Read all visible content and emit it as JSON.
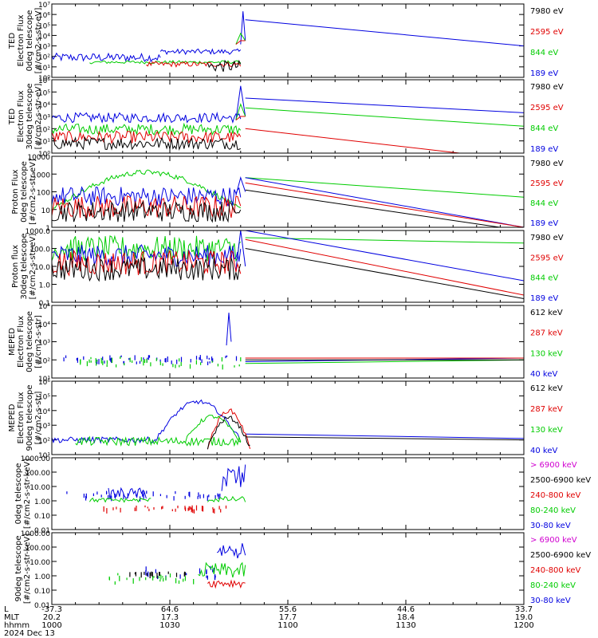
{
  "chart_data": {
    "type": "line",
    "date": "2024 Dec 13",
    "x_axis": {
      "row_labels": [
        "L",
        "MLT",
        "hhmm"
      ],
      "ticks": [
        {
          "hhmm": "1000",
          "L": "-37.3",
          "MLT": "20.2"
        },
        {
          "hhmm": "1030",
          "L": "64.6",
          "MLT": "17.3"
        },
        {
          "hhmm": "1100",
          "L": "55.6",
          "MLT": "17.7"
        },
        {
          "hhmm": "1130",
          "L": "44.6",
          "MLT": "18.4"
        },
        {
          "hhmm": "1200",
          "L": "33.7",
          "MLT": "19.0"
        }
      ]
    },
    "panels": [
      {
        "ylabel": [
          "TED",
          "Electron Flux",
          "0deg telescope",
          "[#/cm2-s-str-eV]"
        ],
        "log_min": 0,
        "log_max": 7,
        "ticks": [
          "10⁰",
          "10¹",
          "10²",
          "10³",
          "10⁴",
          "10⁵",
          "10⁶",
          "10⁷"
        ],
        "legend": [
          {
            "label": "7980 eV",
            "color": "#000000"
          },
          {
            "label": "2595 eV",
            "color": "#e00000"
          },
          {
            "label": "844 eV",
            "color": "#00cc00"
          },
          {
            "label": "189 eV",
            "color": "#0000e0"
          }
        ],
        "series": [
          {
            "color": "#0000e0",
            "noisy": [
              [
                0,
                0.23,
                1.5,
                2.3
              ],
              [
                0.23,
                0.4,
                2.2,
                2.7
              ]
            ],
            "spike": [
              0.4,
              0.41,
              6.3
            ],
            "tail": [
              5.5,
              3.0
            ]
          },
          {
            "color": "#00cc00",
            "noisy": [
              [
                0.08,
                0.4,
                1.3,
                1.6
              ]
            ],
            "spike": [
              0.39,
              0.41,
              4.2
            ]
          },
          {
            "color": "#e00000",
            "noisy": [
              [
                0.2,
                0.4,
                1.0,
                1.5
              ]
            ],
            "spike": [
              0.39,
              0.41,
              3.5
            ]
          },
          {
            "color": "#000000",
            "noisy": [
              [
                0.33,
                0.4,
                0.5,
                1.6
              ]
            ]
          }
        ]
      },
      {
        "ylabel": [
          "TED",
          "Electron Flux",
          "30deg telescope",
          "[#/cm2-s-str-eV]"
        ],
        "log_min": 0,
        "log_max": 6,
        "ticks": [
          "10⁰",
          "10¹",
          "10²",
          "10³",
          "10⁴",
          "10⁵",
          "10⁶"
        ],
        "legend": [
          {
            "label": "7980 eV",
            "color": "#000000"
          },
          {
            "label": "2595 eV",
            "color": "#e00000"
          },
          {
            "label": "844 eV",
            "color": "#00cc00"
          },
          {
            "label": "189 eV",
            "color": "#0000e0"
          }
        ],
        "series": [
          {
            "color": "#0000e0",
            "noisy": [
              [
                0,
                0.4,
                2.5,
                3.3
              ]
            ],
            "spike": [
              0.39,
              0.41,
              5.5
            ],
            "tail": [
              4.5,
              3.3
            ]
          },
          {
            "color": "#00cc00",
            "noisy": [
              [
                0,
                0.4,
                1.5,
                2.4
              ]
            ],
            "spike": [
              0.39,
              0.41,
              4.0
            ],
            "tail": [
              3.7,
              2.2
            ]
          },
          {
            "color": "#e00000",
            "noisy": [
              [
                0,
                0.4,
                0.8,
                1.8
              ]
            ],
            "spike": [
              0.39,
              0.41,
              3.0
            ],
            "tail": [
              2.0,
              -0.6
            ]
          },
          {
            "color": "#000000",
            "noisy": [
              [
                0,
                0.4,
                0.3,
                1.3
              ]
            ]
          }
        ]
      },
      {
        "ylabel": [
          "Proton Flux",
          "0deg telescope",
          "[#/cm2-s-str-eV]"
        ],
        "log_min": 0,
        "log_max": 4,
        "ticks": [
          "1",
          "10",
          "100",
          "1000",
          "10000"
        ],
        "legend": [
          {
            "label": "7980 eV",
            "color": "#000000"
          },
          {
            "label": "2595 eV",
            "color": "#e00000"
          },
          {
            "label": "844 eV",
            "color": "#00cc00"
          },
          {
            "label": "189 eV",
            "color": "#0000e0"
          }
        ],
        "series": [
          {
            "color": "#00cc00",
            "hump": [
              0,
              0.4,
              1.0,
              3.1
            ],
            "tail": [
              2.8,
              1.7
            ]
          },
          {
            "color": "#0000e0",
            "noisy": [
              [
                0,
                0.4,
                1.2,
                2.3
              ]
            ],
            "spike": [
              0.39,
              0.41,
              2.8
            ],
            "tail": [
              2.8,
              0.0
            ]
          },
          {
            "color": "#e00000",
            "noisy": [
              [
                0,
                0.4,
                0.5,
                1.8
              ]
            ],
            "tail": [
              2.5,
              0.0
            ]
          },
          {
            "color": "#000000",
            "noisy": [
              [
                0,
                0.4,
                0.3,
                1.5
              ]
            ],
            "tail": [
              2.1,
              -0.2
            ]
          }
        ]
      },
      {
        "ylabel": [
          "Proton flux",
          "30deg telescope",
          "[#/cm2-s-str-eV]"
        ],
        "log_min": -1,
        "log_max": 3,
        "ticks": [
          "0.1",
          "1.0",
          "10.0",
          "100.0",
          "1000.0"
        ],
        "legend": [
          {
            "label": "7980 eV",
            "color": "#000000"
          },
          {
            "label": "2595 eV",
            "color": "#e00000"
          },
          {
            "label": "844 eV",
            "color": "#00cc00"
          },
          {
            "label": "189 eV",
            "color": "#0000e0"
          }
        ],
        "series": [
          {
            "color": "#00cc00",
            "noisy": [
              [
                0,
                0.4,
                1.3,
                2.7
              ]
            ],
            "tail": [
              2.6,
              2.3
            ]
          },
          {
            "color": "#0000e0",
            "noisy": [
              [
                0,
                0.4,
                1.0,
                2.2
              ]
            ],
            "spike": [
              0.39,
              0.41,
              3.0
            ],
            "tail": [
              3.0,
              0.2
            ]
          },
          {
            "color": "#e00000",
            "noisy": [
              [
                0,
                0.4,
                0.5,
                1.9
              ]
            ],
            "tail": [
              2.5,
              -0.6
            ]
          },
          {
            "color": "#000000",
            "noisy": [
              [
                0,
                0.4,
                0.2,
                1.5
              ]
            ],
            "tail": [
              2.0,
              -0.8
            ]
          }
        ]
      },
      {
        "ylabel": [
          "MEPED",
          "Electron Flux",
          "0deg telescope",
          "[#/cm2-s-str]"
        ],
        "log_min": 1,
        "log_max": 5,
        "ticks": [
          "10¹",
          "10²",
          "10³",
          "10⁴",
          "10⁵"
        ],
        "legend": [
          {
            "label": "612 keV",
            "color": "#000000"
          },
          {
            "label": "287 keV",
            "color": "#e00000"
          },
          {
            "label": "130 keV",
            "color": "#00cc00"
          },
          {
            "label": "40 keV",
            "color": "#0000e0"
          }
        ],
        "series": [
          {
            "color": "#0000e0",
            "dots": [
              0.02,
              0.4,
              1.9,
              2.3
            ],
            "spike": [
              0.37,
              0.38,
              4.6
            ],
            "tail": [
              1.9,
              2.1
            ]
          },
          {
            "color": "#00cc00",
            "dots": [
              0.05,
              0.4,
              1.7,
              2.2
            ],
            "tail": [
              1.8,
              2.0
            ]
          },
          {
            "color": "#e00000",
            "tail": [
              2.1,
              2.1
            ]
          },
          {
            "color": "#000000",
            "tail": [
              2.0,
              2.0
            ]
          }
        ]
      },
      {
        "ylabel": [
          "MEPED",
          "Electron Flux",
          "90deg telescope",
          "[#/cm2-s-str]"
        ],
        "log_min": 1,
        "log_max": 6,
        "ticks": [
          "10¹",
          "10²",
          "10³",
          "10⁴",
          "10⁵",
          "10⁶"
        ],
        "legend": [
          {
            "label": "612 keV",
            "color": "#000000"
          },
          {
            "label": "287 keV",
            "color": "#e00000"
          },
          {
            "label": "130 keV",
            "color": "#00cc00"
          },
          {
            "label": "40 keV",
            "color": "#0000e0"
          }
        ],
        "series": [
          {
            "color": "#0000e0",
            "hump": [
              0.22,
              0.4,
              2.0,
              4.6
            ],
            "noisy": [
              [
                0,
                0.22,
                1.8,
                2.2
              ]
            ],
            "tail": [
              2.4,
              2.1
            ]
          },
          {
            "color": "#e00000",
            "hump": [
              0.33,
              0.42,
              1.5,
              4.0
            ]
          },
          {
            "color": "#00cc00",
            "noisy": [
              [
                0.05,
                0.4,
                1.6,
                2.2
              ]
            ],
            "hump": [
              0.28,
              0.4,
              1.8,
              3.6
            ]
          },
          {
            "color": "#000000",
            "hump": [
              0.33,
              0.42,
              1.5,
              3.5
            ],
            "tail": [
              2.2,
              2.0
            ]
          }
        ]
      },
      {
        "ylabel": [
          "0deg telescope",
          "[#/cm2-s-str-keV]"
        ],
        "log_min": -2,
        "log_max": 3,
        "ticks": [
          "0.01",
          "0.10",
          "1.00",
          "10.00",
          "100.00",
          "1000.00"
        ],
        "legend": [
          {
            "label": "> 6900 keV",
            "color": "#d000d0"
          },
          {
            "label": "2500-6900 keV",
            "color": "#000000"
          },
          {
            "label": "240-800 keV",
            "color": "#e00000"
          },
          {
            "label": "80-240 keV",
            "color": "#00cc00"
          },
          {
            "label": "30-80 keV",
            "color": "#0000e0"
          }
        ],
        "series": [
          {
            "color": "#0000e0",
            "noisy": [
              [
                0.12,
                0.2,
                0.1,
                0.9
              ],
              [
                0.36,
                0.41,
                0.5,
                2.6
              ]
            ],
            "dots": [
              0.03,
              0.36,
              0.3,
              0.7
            ]
          },
          {
            "color": "#00cc00",
            "noisy": [
              [
                0.08,
                0.21,
                -0.1,
                0.2
              ],
              [
                0.33,
                0.41,
                -0.1,
                0.3
              ]
            ]
          },
          {
            "color": "#e00000",
            "dots": [
              0.1,
              0.38,
              -0.6,
              -0.3
            ]
          }
        ]
      },
      {
        "ylabel": [
          "90deg telescope",
          "[#/cm2-s-str-keV]"
        ],
        "log_min": -2,
        "log_max": 3,
        "ticks": [
          "0.01",
          "0.10",
          "1.00",
          "10.00",
          "100.00",
          "1000.00"
        ],
        "legend": [
          {
            "label": "> 6900 keV",
            "color": "#d000d0"
          },
          {
            "label": "2500-6900 keV",
            "color": "#000000"
          },
          {
            "label": "240-800 keV",
            "color": "#e00000"
          },
          {
            "label": "80-240 keV",
            "color": "#00cc00"
          },
          {
            "label": "30-80 keV",
            "color": "#0000e0"
          }
        ],
        "series": [
          {
            "color": "#0000e0",
            "noisy": [
              [
                0.35,
                0.41,
                1.2,
                2.4
              ]
            ],
            "dots": [
              0.18,
              0.35,
              0.0,
              0.7
            ]
          },
          {
            "color": "#00cc00",
            "noisy": [
              [
                0.31,
                0.41,
                -0.2,
                0.9
              ]
            ],
            "dots": [
              0.12,
              0.31,
              -0.4,
              0.2
            ]
          },
          {
            "color": "#e00000",
            "noisy": [
              [
                0.33,
                0.41,
                -0.8,
                -0.2
              ]
            ]
          },
          {
            "color": "#000000",
            "dots": [
              0.15,
              0.3,
              0.2,
              0.3
            ]
          }
        ]
      }
    ]
  }
}
